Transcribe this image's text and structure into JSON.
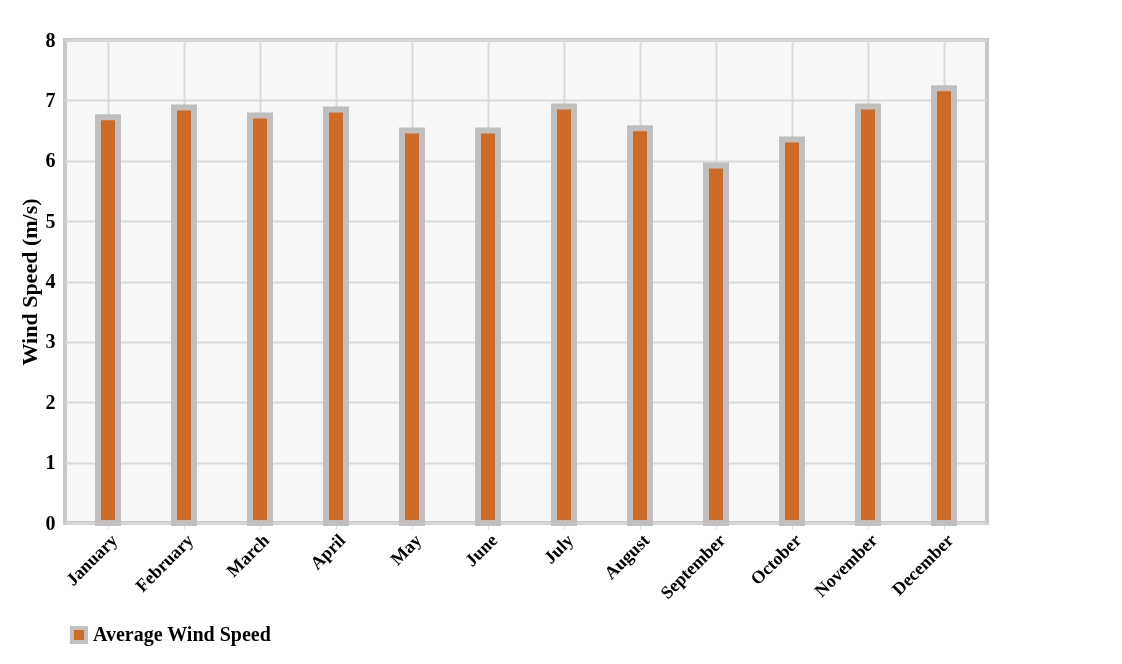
{
  "chart_data": {
    "type": "bar",
    "ylabel": "Wind Speed (m/s)",
    "categories": [
      "January",
      "February",
      "March",
      "April",
      "May",
      "June",
      "July",
      "August",
      "September",
      "October",
      "November",
      "December"
    ],
    "series": [
      {
        "name": "Average Wind Speed",
        "color": "#cf6a25",
        "values": [
          6.72,
          6.88,
          6.75,
          6.85,
          6.5,
          6.5,
          6.9,
          6.54,
          5.92,
          6.35,
          6.9,
          7.2
        ]
      }
    ],
    "ylim": [
      0,
      8
    ],
    "yticks": [
      0,
      1,
      2,
      3,
      4,
      5,
      6,
      7,
      8
    ],
    "grid": true,
    "legend": "bottom"
  }
}
